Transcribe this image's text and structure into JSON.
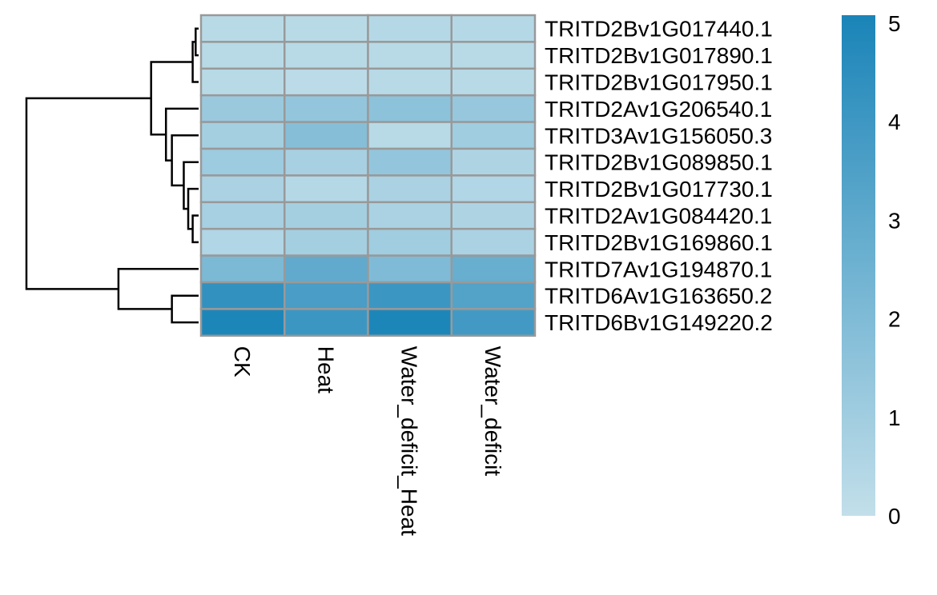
{
  "chart_data": {
    "type": "heatmap",
    "columns": [
      "CK",
      "Heat",
      "Water_deficit_Heat",
      "Water_deficit"
    ],
    "rows": [
      "TRITD2Bv1G017440.1",
      "TRITD2Bv1G017890.1",
      "TRITD2Bv1G017950.1",
      "TRITD2Av1G206540.1",
      "TRITD3Av1G156050.3",
      "TRITD2Bv1G089850.1",
      "TRITD2Bv1G017730.1",
      "TRITD2Av1G084420.1",
      "TRITD2Bv1G169860.1",
      "TRITD7Av1G194870.1",
      "TRITD6Av1G163650.2",
      "TRITD6Bv1G149220.2"
    ],
    "values": [
      [
        0.3,
        0.3,
        0.4,
        0.4
      ],
      [
        0.3,
        0.3,
        0.3,
        0.3
      ],
      [
        0.3,
        0.2,
        0.3,
        0.3
      ],
      [
        1.2,
        1.4,
        1.6,
        1.3
      ],
      [
        0.9,
        1.8,
        0.3,
        1.0
      ],
      [
        1.1,
        0.8,
        1.4,
        0.6
      ],
      [
        0.7,
        0.4,
        0.7,
        0.5
      ],
      [
        0.8,
        0.9,
        0.7,
        0.6
      ],
      [
        0.5,
        0.9,
        1.0,
        0.7
      ],
      [
        2.1,
        2.9,
        2.0,
        2.7
      ],
      [
        4.3,
        3.6,
        4.0,
        3.3
      ],
      [
        4.9,
        4.0,
        4.9,
        3.8
      ]
    ],
    "row_dendrogram": [
      {
        "left": 0,
        "right": 1,
        "height": 0.1
      },
      {
        "left": -1,
        "right": 2,
        "height": 0.2
      },
      {
        "left": 7,
        "right": 8,
        "height": 0.2
      },
      {
        "left": 6,
        "right": -3,
        "height": 0.35
      },
      {
        "left": 5,
        "right": -4,
        "height": 0.5
      },
      {
        "left": 4,
        "right": -5,
        "height": 0.9
      },
      {
        "left": 3,
        "right": -6,
        "height": 1.1
      },
      {
        "left": -2,
        "right": -7,
        "height": 1.6
      },
      {
        "left": 10,
        "right": 11,
        "height": 0.9
      },
      {
        "left": 9,
        "right": -9,
        "height": 2.7
      },
      {
        "left": -8,
        "right": -10,
        "height": 5.8
      }
    ],
    "color_scale": {
      "min": 0,
      "max": 5,
      "low_color": "#c2dfea",
      "high_color": "#1a84b8",
      "ticks": [
        "0",
        "1",
        "2",
        "3",
        "4",
        "5"
      ]
    },
    "cell_border_color": "#999999",
    "grid": false,
    "legend_placement": "right"
  }
}
